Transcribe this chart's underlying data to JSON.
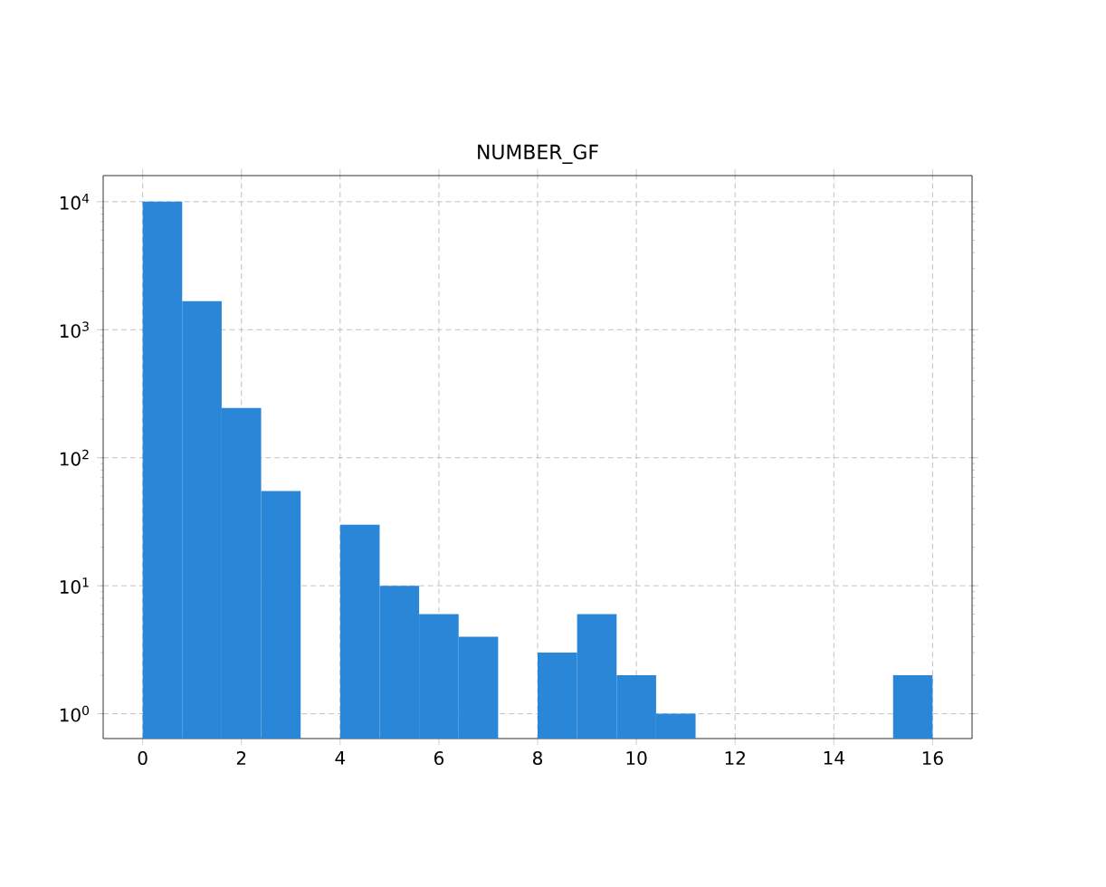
{
  "chart_data": {
    "type": "histogram",
    "title": "NUMBER_GF",
    "bins": [
      0,
      0.8,
      1.6,
      2.4,
      3.2,
      4.0,
      4.8,
      5.6,
      6.4,
      7.2,
      8.0,
      8.8,
      9.6,
      10.4,
      11.2,
      12.0,
      12.8,
      13.6,
      14.4,
      15.2,
      16.0
    ],
    "values": [
      10000,
      1670,
      245,
      55,
      null,
      30,
      10,
      6,
      4,
      null,
      3,
      6,
      2,
      1,
      null,
      null,
      null,
      null,
      null,
      2
    ],
    "color": "#2a86d6",
    "log": "y",
    "grid": true,
    "xlim": [
      -0.8,
      16.8
    ],
    "xticks": [
      0,
      2,
      4,
      6,
      8,
      10,
      12,
      14,
      16
    ],
    "ylim": [
      0.64,
      16000
    ],
    "yticks": [
      {
        "value": 1,
        "label": "10$^{0}$"
      },
      {
        "value": 10,
        "label": "10$^{1}$"
      },
      {
        "value": 100,
        "label": "10$^{2}$"
      },
      {
        "value": 1000,
        "label": "10$^{3}$"
      },
      {
        "value": 10000,
        "label": "10$^{4}$"
      }
    ]
  }
}
